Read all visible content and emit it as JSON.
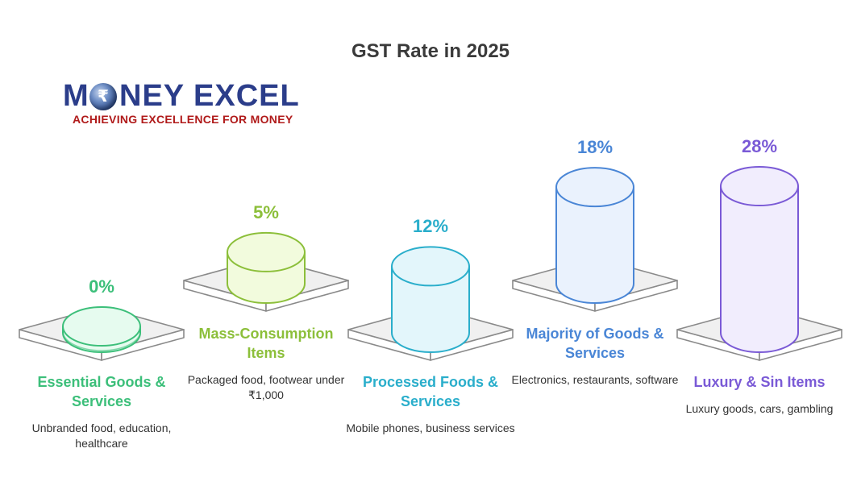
{
  "title": "GST Rate in 2025",
  "logo": {
    "word_left": "M",
    "word_right": "NEY EXCEL",
    "rupee_glyph": "₹",
    "tagline": "ACHIEVING EXCELLENCE FOR MONEY"
  },
  "chart_data": {
    "type": "bar",
    "title": "GST Rate in 2025",
    "categories": [
      "Essential Goods & Services",
      "Mass-Consumption Items",
      "Processed Foods & Services",
      "Majority of Goods & Services",
      "Luxury & Sin Items"
    ],
    "values": [
      0,
      5,
      12,
      18,
      28
    ],
    "value_labels": [
      "0%",
      "5%",
      "12%",
      "18%",
      "28%"
    ],
    "descriptions": [
      "Unbranded food, education, healthcare",
      "Packaged food, footwear under ₹1,000",
      "Mobile phones, business services",
      "Electronics, restaurants, software",
      "Luxury goods, cars, gambling"
    ],
    "colors": [
      "#3cbf7a",
      "#8cbf3a",
      "#2aaecb",
      "#4a86d6",
      "#7a5ad6"
    ],
    "fills": [
      "#e6fbef",
      "#f2fbdd",
      "#e3f6fb",
      "#eaf2fd",
      "#f1edfd"
    ]
  }
}
